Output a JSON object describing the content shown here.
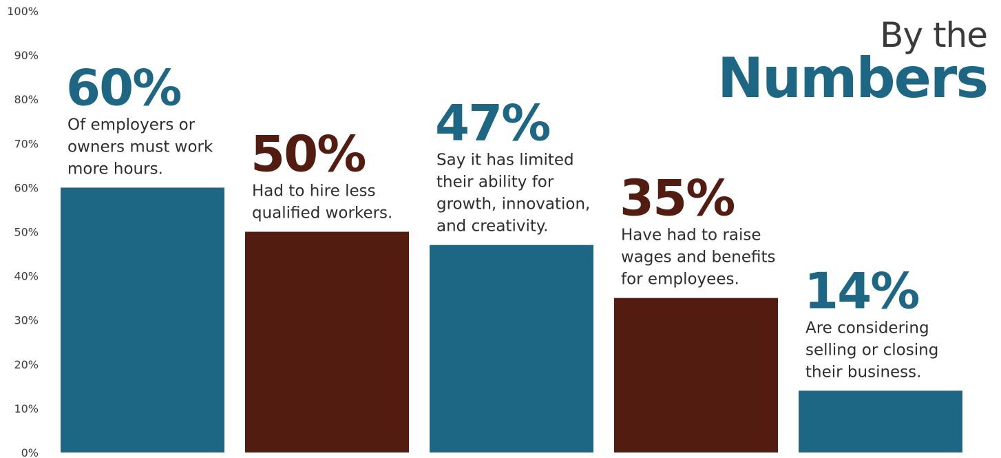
{
  "chart_data": {
    "type": "bar",
    "title_line1": "By the",
    "title_line2": "Numbers",
    "ylim": [
      0,
      100
    ],
    "y_ticks": [
      0,
      10,
      20,
      30,
      40,
      50,
      60,
      70,
      80,
      90,
      100
    ],
    "y_tick_labels": [
      "0%",
      "10%",
      "20%",
      "30%",
      "40%",
      "50%",
      "60%",
      "70%",
      "80%",
      "90%",
      "100%"
    ],
    "grid": false,
    "values": [
      60,
      50,
      47,
      35,
      14
    ],
    "value_labels": [
      "60%",
      "50%",
      "47%",
      "35%",
      "14%"
    ],
    "annotations": [
      [
        "Of employers or",
        "owners must work",
        "more hours."
      ],
      [
        "Had to hire less",
        "qualified workers."
      ],
      [
        "Say it has limited",
        "their ability for",
        "growth, innovation,",
        "and creativity."
      ],
      [
        "Have had to raise",
        "wages and benefits",
        "for employees."
      ],
      [
        "Are considering",
        "selling or closing",
        "their business."
      ]
    ],
    "colors": [
      "#1e6784",
      "#531c10",
      "#1e6784",
      "#531c10",
      "#1e6784"
    ]
  }
}
